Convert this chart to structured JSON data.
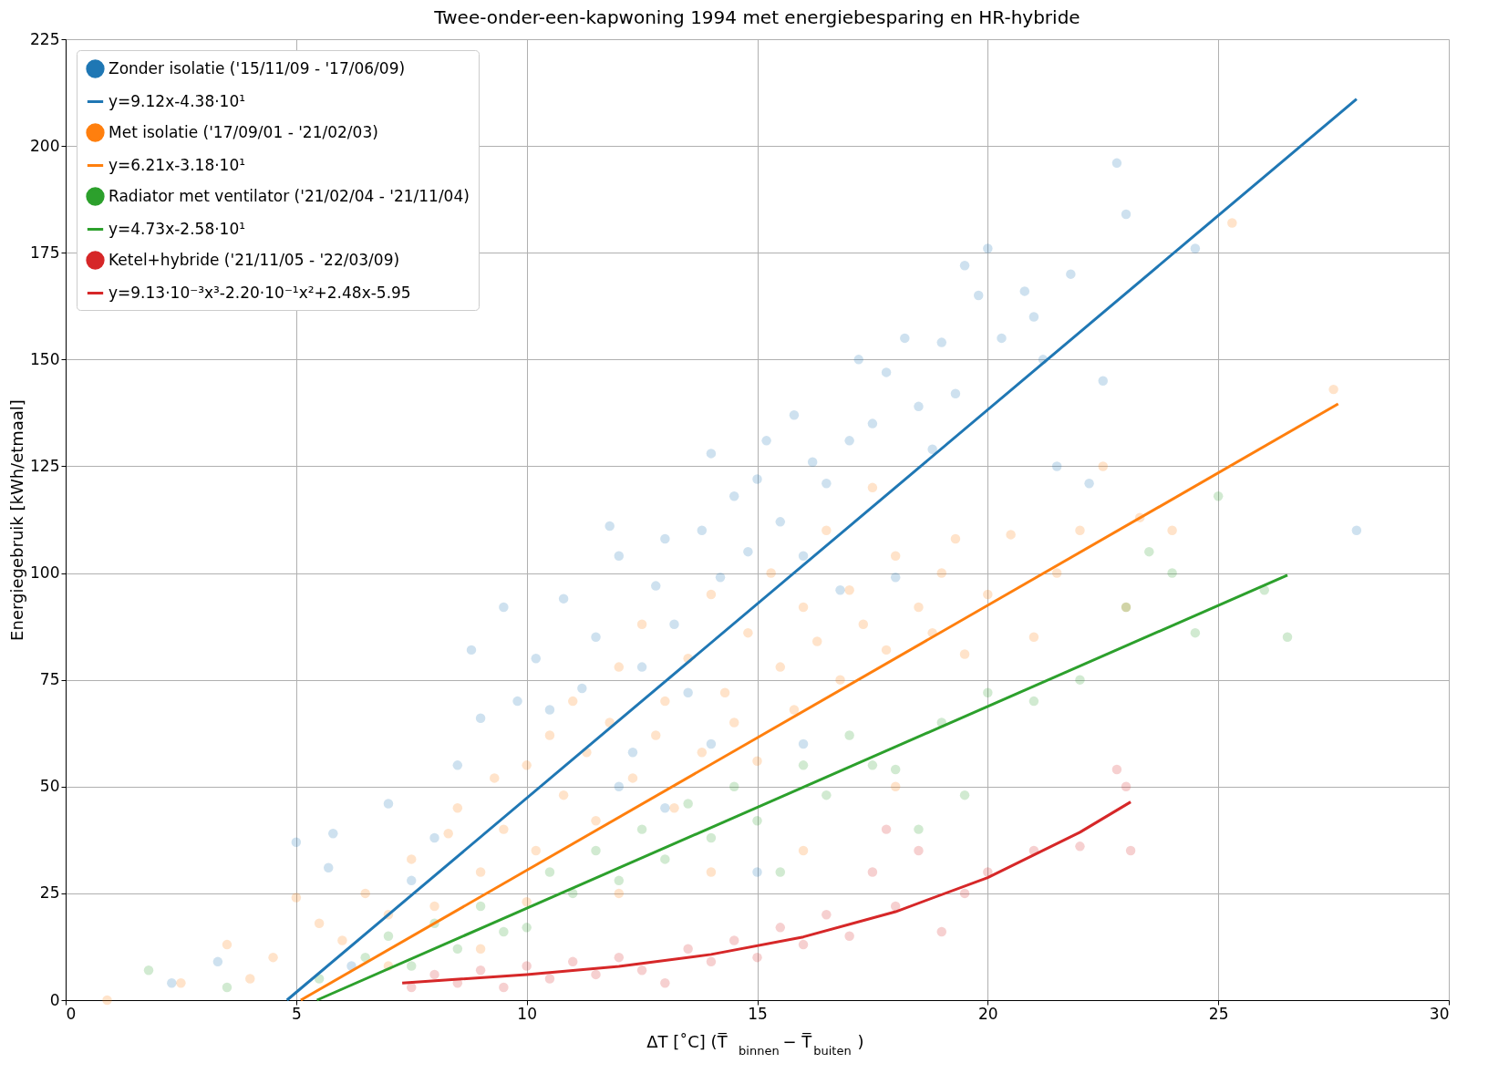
{
  "chart_data": {
    "type": "scatter",
    "title": "Twee-onder-een-kapwoning 1994 met energiebesparing en HR-hybride",
    "xlabel": "ΔT [˚C] (T̅$_{binnen}$ − T̅$_{buiten}$)",
    "ylabel": "Energiegebruik [kWh/etmaal]",
    "xlim": [
      0,
      30
    ],
    "xticks": [
      0,
      5,
      10,
      15,
      20,
      25,
      30
    ],
    "ylim": [
      0,
      225
    ],
    "yticks": [
      0,
      25,
      50,
      75,
      100,
      125,
      150,
      175,
      200,
      225
    ],
    "grid": true,
    "legend": "top left",
    "marker": "circle",
    "series": [
      {
        "name": "Zonder isolatie ('15/11/09 - '17/06/09)",
        "color": "#1f77b4",
        "x": [
          5.0,
          5.7,
          5.8,
          6.2,
          7.0,
          7.5,
          8.0,
          8.5,
          8.8,
          9.0,
          9.5,
          9.8,
          10.2,
          10.5,
          10.8,
          11.2,
          11.5,
          11.8,
          12.0,
          12.3,
          12.5,
          12.8,
          13.0,
          13.2,
          13.5,
          13.8,
          14.0,
          14.2,
          14.5,
          14.8,
          15.0,
          15.2,
          15.5,
          15.8,
          16.0,
          16.2,
          16.5,
          16.8,
          17.0,
          17.2,
          17.5,
          17.8,
          18.0,
          18.2,
          18.5,
          18.8,
          19.0,
          19.3,
          19.5,
          19.8,
          20.0,
          20.3,
          20.8,
          21.0,
          21.2,
          21.5,
          21.8,
          22.2,
          22.5,
          22.8,
          23.0,
          24.5,
          28.0,
          3.3,
          2.3,
          14.0,
          13.0,
          12.0,
          15.0,
          16.0
        ],
        "values": [
          37,
          31,
          39,
          8,
          46,
          28,
          38,
          55,
          82,
          66,
          92,
          70,
          80,
          68,
          94,
          73,
          85,
          111,
          104,
          58,
          78,
          97,
          108,
          88,
          72,
          110,
          128,
          99,
          118,
          105,
          122,
          131,
          112,
          137,
          104,
          126,
          121,
          96,
          131,
          150,
          135,
          147,
          99,
          155,
          139,
          129,
          154,
          142,
          172,
          165,
          176,
          155,
          166,
          160,
          150,
          125,
          170,
          121,
          145,
          196,
          184,
          176,
          110,
          9,
          4,
          60,
          45,
          50,
          30,
          60
        ]
      },
      {
        "type": "line",
        "marker": "none",
        "name": "y=9.12x-4.38·10¹",
        "color": "#1f77b4",
        "x": [
          4.8,
          28.0
        ],
        "values": [
          0,
          211
        ]
      },
      {
        "name": "Met isolatie ('17/09/01 - '21/02/03)",
        "color": "#ff7f0e",
        "x": [
          0.9,
          2.5,
          3.5,
          4.0,
          4.5,
          5.0,
          5.5,
          6.0,
          6.5,
          7.0,
          7.5,
          8.0,
          8.3,
          8.5,
          9.0,
          9.3,
          9.5,
          10.0,
          10.2,
          10.5,
          10.8,
          11.0,
          11.3,
          11.5,
          11.8,
          12.0,
          12.3,
          12.5,
          12.8,
          13.0,
          13.2,
          13.5,
          13.8,
          14.0,
          14.3,
          14.5,
          14.8,
          15.0,
          15.3,
          15.5,
          15.8,
          16.0,
          16.3,
          16.5,
          16.8,
          17.0,
          17.3,
          17.5,
          17.8,
          18.0,
          18.5,
          18.8,
          19.0,
          19.3,
          19.5,
          20.0,
          20.5,
          21.0,
          21.5,
          22.0,
          22.5,
          23.0,
          23.3,
          24.0,
          25.3,
          27.5,
          10.0,
          12.0,
          14.0,
          16.0,
          18.0,
          7.0,
          9.0
        ],
        "values": [
          0,
          4,
          13,
          5,
          10,
          24,
          18,
          14,
          25,
          20,
          33,
          22,
          39,
          45,
          30,
          52,
          40,
          55,
          35,
          62,
          48,
          70,
          58,
          42,
          65,
          78,
          52,
          88,
          62,
          70,
          45,
          80,
          58,
          95,
          72,
          65,
          86,
          56,
          100,
          78,
          68,
          92,
          84,
          110,
          75,
          96,
          88,
          120,
          82,
          104,
          92,
          86,
          100,
          108,
          81,
          95,
          109,
          85,
          100,
          110,
          125,
          92,
          113,
          110,
          182,
          143,
          23,
          25,
          30,
          35,
          50,
          8,
          12
        ]
      },
      {
        "type": "line",
        "marker": "none",
        "name": "y=6.21x-3.18·10¹",
        "color": "#ff7f0e",
        "x": [
          5.1,
          27.6
        ],
        "values": [
          0,
          139.6
        ]
      },
      {
        "name": "Radiator met ventilator ('21/02/04 - '21/11/04)",
        "color": "#2ca02c",
        "x": [
          1.8,
          3.5,
          5.5,
          6.5,
          7.0,
          7.5,
          8.0,
          8.5,
          9.0,
          9.5,
          10.0,
          10.5,
          11.0,
          11.5,
          12.0,
          12.5,
          13.0,
          13.5,
          14.0,
          14.5,
          15.0,
          15.5,
          16.0,
          16.5,
          17.0,
          17.5,
          18.0,
          18.5,
          19.0,
          19.5,
          20.0,
          21.0,
          22.0,
          23.0,
          23.5,
          24.0,
          24.5,
          25.0,
          26.5,
          26.0
        ],
        "values": [
          7,
          3,
          5,
          10,
          15,
          8,
          18,
          12,
          22,
          16,
          17,
          30,
          25,
          35,
          28,
          40,
          33,
          46,
          38,
          50,
          42,
          30,
          55,
          48,
          62,
          55,
          54,
          40,
          65,
          48,
          72,
          70,
          75,
          92,
          105,
          100,
          86,
          118,
          85,
          96
        ]
      },
      {
        "type": "line",
        "marker": "none",
        "name": "y=4.73x-2.58·10¹",
        "color": "#2ca02c",
        "x": [
          5.45,
          26.5
        ],
        "values": [
          0,
          99.5
        ]
      },
      {
        "name": "Ketel+hybride ('21/11/05 - '22/03/09)",
        "color": "#d62728",
        "x": [
          7.5,
          8.0,
          8.5,
          9.0,
          9.5,
          10.0,
          10.5,
          11.0,
          11.5,
          12.0,
          12.5,
          13.0,
          13.5,
          14.0,
          14.5,
          15.0,
          15.5,
          16.0,
          16.5,
          17.0,
          17.5,
          17.8,
          18.0,
          18.5,
          19.0,
          19.5,
          20.0,
          21.0,
          22.0,
          22.8,
          23.1,
          23.0
        ],
        "values": [
          3,
          6,
          4,
          7,
          3,
          8,
          5,
          9,
          6,
          10,
          7,
          4,
          12,
          9,
          14,
          10,
          17,
          13,
          20,
          15,
          30,
          40,
          22,
          35,
          16,
          25,
          30,
          35,
          36,
          54,
          35,
          50
        ]
      },
      {
        "type": "line",
        "marker": "none",
        "name": "y=9.13·10⁻³x³-2.20·10⁻¹x²+2.48x-5.95",
        "color": "#d62728",
        "x": [
          7.3,
          10,
          12,
          14,
          16,
          18,
          20,
          22,
          23.1
        ],
        "values": [
          4.0,
          6.0,
          7.9,
          10.7,
          14.8,
          20.7,
          28.7,
          39.3,
          46.4
        ]
      }
    ]
  }
}
